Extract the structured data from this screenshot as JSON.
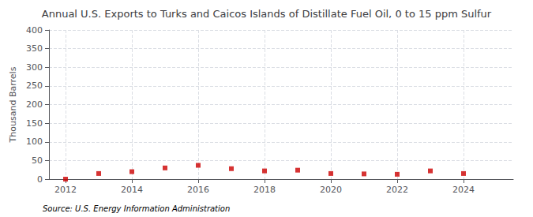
{
  "chart_data": {
    "type": "scatter",
    "title": "Annual U.S. Exports to Turks and Caicos Islands of Distillate Fuel Oil, 0 to 15 ppm Sulfur",
    "ylabel": "Thousand Barrels",
    "source": "Source: U.S. Energy Information Administration",
    "x": [
      2012,
      2013,
      2014,
      2015,
      2016,
      2017,
      2018,
      2019,
      2020,
      2021,
      2022,
      2023,
      2024
    ],
    "values": [
      0,
      15,
      20,
      30,
      37,
      28,
      22,
      24,
      15,
      14,
      13,
      22,
      15
    ],
    "color": "#cc0000",
    "marker": "square",
    "xlim": [
      2011.5,
      2025.5
    ],
    "xticks": [
      2012,
      2014,
      2016,
      2018,
      2020,
      2022,
      2024
    ],
    "ylim": [
      0,
      400
    ],
    "yticks": [
      0,
      50,
      100,
      150,
      200,
      250,
      300,
      350,
      400
    ],
    "grid": true
  }
}
